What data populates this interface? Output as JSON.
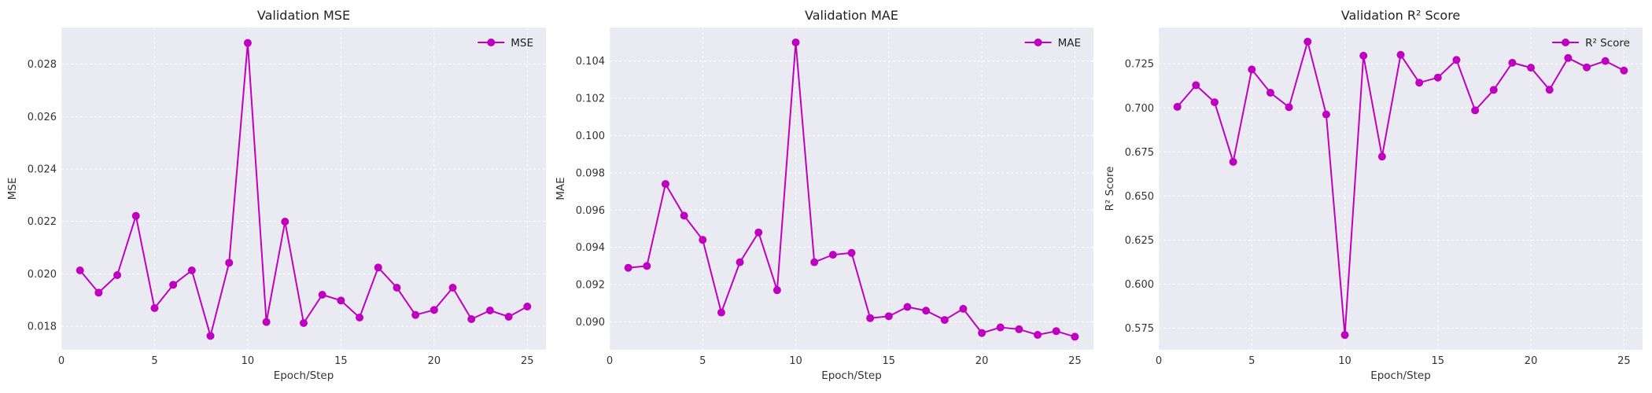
{
  "chart_data": [
    {
      "type": "line",
      "title": "Validation MSE",
      "xlabel": "Epoch/Step",
      "ylabel": "MSE",
      "x": [
        1,
        2,
        3,
        4,
        5,
        6,
        7,
        8,
        9,
        10,
        11,
        12,
        13,
        14,
        15,
        16,
        17,
        18,
        19,
        20,
        21,
        22,
        23,
        24,
        25
      ],
      "series": [
        {
          "name": "MSE",
          "color": "#c000c0",
          "marker": "circle",
          "values": [
            0.02013,
            0.01928,
            0.01995,
            0.02221,
            0.01869,
            0.01958,
            0.02013,
            0.01763,
            0.02042,
            0.02881,
            0.01816,
            0.02199,
            0.01812,
            0.0192,
            0.01898,
            0.01833,
            0.02024,
            0.01947,
            0.01843,
            0.01862,
            0.01947,
            0.01827,
            0.0186,
            0.01836,
            0.01875
          ]
        }
      ],
      "xlim": [
        0,
        26
      ],
      "ylim": [
        0.0171,
        0.0294
      ],
      "xticks": [
        0,
        5,
        10,
        15,
        20,
        25
      ],
      "xtick_labels": [
        "0",
        "5",
        "10",
        "15",
        "20",
        "25"
      ],
      "yticks": [
        0.018,
        0.02,
        0.022,
        0.024,
        0.026,
        0.028
      ],
      "ytick_labels": [
        "0.018",
        "0.020",
        "0.022",
        "0.024",
        "0.026",
        "0.028"
      ],
      "legend": "top-right",
      "grid": true
    },
    {
      "type": "line",
      "title": "Validation MAE",
      "xlabel": "Epoch/Step",
      "ylabel": "MAE",
      "x": [
        1,
        2,
        3,
        4,
        5,
        6,
        7,
        8,
        9,
        10,
        11,
        12,
        13,
        14,
        15,
        16,
        17,
        18,
        19,
        20,
        21,
        22,
        23,
        24,
        25
      ],
      "series": [
        {
          "name": "MAE",
          "color": "#c000c0",
          "marker": "circle",
          "values": [
            0.0929,
            0.093,
            0.0974,
            0.0957,
            0.0944,
            0.0905,
            0.0932,
            0.0948,
            0.0917,
            0.105,
            0.0932,
            0.0936,
            0.0937,
            0.0902,
            0.0903,
            0.0908,
            0.0906,
            0.0901,
            0.0907,
            0.0894,
            0.0897,
            0.0896,
            0.0893,
            0.0895,
            0.0892
          ]
        }
      ],
      "xlim": [
        0,
        26
      ],
      "ylim": [
        0.0885,
        0.1058
      ],
      "xticks": [
        0,
        5,
        10,
        15,
        20,
        25
      ],
      "xtick_labels": [
        "0",
        "5",
        "10",
        "15",
        "20",
        "25"
      ],
      "yticks": [
        0.09,
        0.092,
        0.094,
        0.096,
        0.098,
        0.1,
        0.102,
        0.104
      ],
      "ytick_labels": [
        "0.090",
        "0.092",
        "0.094",
        "0.096",
        "0.098",
        "0.100",
        "0.102",
        "0.104"
      ],
      "legend": "top-right",
      "grid": true
    },
    {
      "type": "line",
      "title": "Validation R² Score",
      "xlabel": "Epoch/Step",
      "ylabel": "R² Score",
      "x": [
        1,
        2,
        3,
        4,
        5,
        6,
        7,
        8,
        9,
        10,
        11,
        12,
        13,
        14,
        15,
        16,
        17,
        18,
        19,
        20,
        21,
        22,
        23,
        24,
        25
      ],
      "series": [
        {
          "name": "R² Score",
          "color": "#c000c0",
          "marker": "circle",
          "values": [
            0.7006,
            0.7129,
            0.7032,
            0.6694,
            0.7218,
            0.7086,
            0.7004,
            0.7376,
            0.6963,
            0.5712,
            0.7296,
            0.6724,
            0.7301,
            0.7143,
            0.7172,
            0.7272,
            0.6986,
            0.7102,
            0.7256,
            0.7228,
            0.7103,
            0.7283,
            0.723,
            0.7266,
            0.7212
          ]
        }
      ],
      "xlim": [
        0,
        26
      ],
      "ylim": [
        0.5628,
        0.7456
      ],
      "xticks": [
        0,
        5,
        10,
        15,
        20,
        25
      ],
      "xtick_labels": [
        "0",
        "5",
        "10",
        "15",
        "20",
        "25"
      ],
      "yticks": [
        0.575,
        0.6,
        0.625,
        0.65,
        0.675,
        0.7,
        0.725
      ],
      "ytick_labels": [
        "0.575",
        "0.600",
        "0.625",
        "0.650",
        "0.675",
        "0.700",
        "0.725"
      ],
      "legend": "top-right",
      "grid": true
    }
  ],
  "style": {
    "plot_background": "#eaeaf2",
    "grid_color": "#ffffff",
    "line_color": "#c000c0"
  }
}
